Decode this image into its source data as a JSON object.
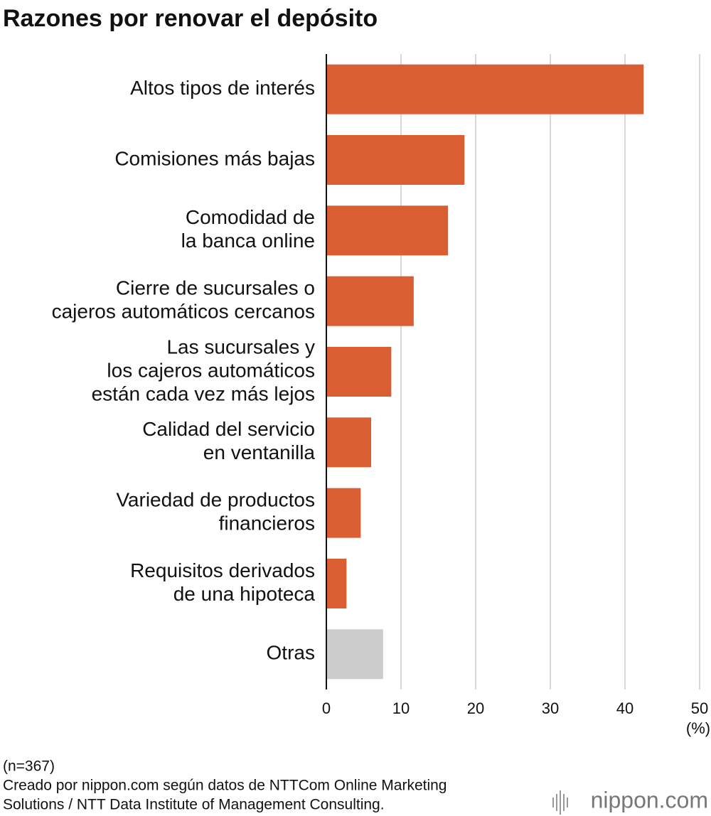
{
  "chart_data": {
    "type": "hbar",
    "title": "Razones por renovar el depósito",
    "categories": [
      [
        "Altos tipos de interés"
      ],
      [
        "Comisiones más bajas"
      ],
      [
        "Comodidad de",
        "la banca online"
      ],
      [
        "Cierre de sucursales o",
        "cajeros automáticos cercanos"
      ],
      [
        "Las sucursales y",
        "los cajeros automáticos",
        "están cada vez más lejos"
      ],
      [
        "Calidad del servicio",
        "en ventanilla"
      ],
      [
        "Variedad de productos",
        "financieros"
      ],
      [
        "Requisitos derivados",
        "de una hipoteca"
      ],
      [
        "Otras"
      ]
    ],
    "values": [
      42.5,
      18.5,
      16.3,
      11.7,
      8.7,
      6.0,
      4.6,
      2.7,
      7.6
    ],
    "colors": [
      "#d95f33",
      "#d95f33",
      "#d95f33",
      "#d95f33",
      "#d95f33",
      "#d95f33",
      "#d95f33",
      "#d95f33",
      "#cccccc"
    ],
    "xlim": [
      0,
      50
    ],
    "xticks": [
      0,
      10,
      20,
      30,
      40,
      50
    ],
    "x_unit": "(%)",
    "grid": true,
    "notes": [
      "(n=367)",
      "Creado por nippon.com según datos de NTTCom Online Marketing",
      "Solutions / NTT Data Institute of Management Consulting."
    ],
    "logo": "nippon.com"
  }
}
